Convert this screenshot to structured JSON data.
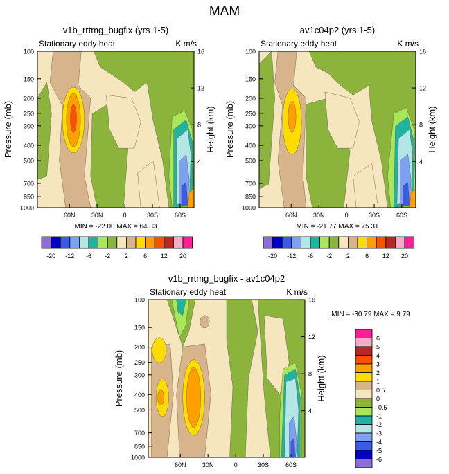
{
  "figure": {
    "title": "MAM"
  },
  "colors": {
    "levels_12": [
      "#8b6fd6",
      "#0000c8",
      "#3c5ae6",
      "#7da0f0",
      "#b4e6e6",
      "#20b4a0",
      "#a8e65a",
      "#8cb43c",
      "#f5e6be",
      "#d7b48c",
      "#ffdc00",
      "#ffa000",
      "#ff5000",
      "#b42828",
      "#f5aac8",
      "#ff1e96"
    ],
    "levels_diff": [
      "#ff1e96",
      "#f5aac8",
      "#b42828",
      "#ff5000",
      "#ffa000",
      "#ffdc00",
      "#d7b48c",
      "#f5e6be",
      "#8cb43c",
      "#a8e65a",
      "#20b4a0",
      "#b4e6e6",
      "#7da0f0",
      "#3c5ae6",
      "#0000c8",
      "#8b6fd6"
    ]
  },
  "chart_data": [
    {
      "type": "heatmap",
      "title": "v1b_rrtmg_bugfix (yrs 1-5)",
      "subtitle_left": "Stationary eddy heat",
      "subtitle_right": "K m/s",
      "ylabel": "Pressure (mb)",
      "ylabel_right": "Height (km)",
      "xticks": [
        "60N",
        "30N",
        "0",
        "30S",
        "60S"
      ],
      "yticks": [
        "100",
        "150",
        "200",
        "250",
        "300",
        "400",
        "500",
        "700",
        "850",
        "1000"
      ],
      "yticks_right": [
        "16",
        "12",
        "8",
        "4"
      ],
      "stats": "MIN = -22.00   MAX =  64.33",
      "min": -22.0,
      "max": 64.33,
      "colorbar_labels": [
        "-20",
        "-12",
        "-6",
        "-2",
        "2",
        "6",
        "12",
        "20"
      ],
      "contour_levels": [
        -20,
        -16,
        -12,
        -8,
        -6,
        -4,
        -2,
        -1,
        1,
        2,
        4,
        6,
        8,
        12,
        16,
        20
      ]
    },
    {
      "type": "heatmap",
      "title": "av1c04p2 (yrs 1-5)",
      "subtitle_left": "Stationary eddy heat",
      "subtitle_right": "K m/s",
      "ylabel": "Pressure (mb)",
      "ylabel_right": "Height (km)",
      "xticks": [
        "60N",
        "30N",
        "0",
        "30S",
        "60S"
      ],
      "yticks": [
        "100",
        "150",
        "200",
        "250",
        "300",
        "400",
        "500",
        "700",
        "850",
        "1000"
      ],
      "yticks_right": [
        "16",
        "12",
        "8",
        "4"
      ],
      "stats": "MIN = -21.77   MAX =  75.31",
      "min": -21.77,
      "max": 75.31,
      "colorbar_labels": [
        "-20",
        "-12",
        "-6",
        "-2",
        "2",
        "6",
        "12",
        "20"
      ],
      "contour_levels": [
        -20,
        -16,
        -12,
        -8,
        -6,
        -4,
        -2,
        -1,
        1,
        2,
        4,
        6,
        8,
        12,
        16,
        20
      ]
    },
    {
      "type": "heatmap",
      "title": "v1b_rrtmg_bugfix - av1c04p2",
      "subtitle_left": "Stationary eddy heat",
      "subtitle_right": "K m/s",
      "ylabel": "Pressure (mb)",
      "ylabel_right": "Height (km)",
      "xticks": [
        "60N",
        "30N",
        "0",
        "30S",
        "60S"
      ],
      "yticks": [
        "100",
        "150",
        "200",
        "250",
        "300",
        "400",
        "500",
        "700",
        "850",
        "1000"
      ],
      "yticks_right": [
        "16",
        "12",
        "8",
        "4"
      ],
      "stats": "MIN = -30.79   MAX =    9.79",
      "min": -30.79,
      "max": 9.79,
      "colorbar_labels": [
        "6",
        "5",
        "4",
        "3",
        "2",
        "1",
        "0.5",
        "0",
        "-0.5",
        "-1",
        "-2",
        "-3",
        "-4",
        "-5",
        "-6"
      ],
      "contour_levels": [
        6,
        5,
        4,
        3,
        2,
        1,
        0.5,
        0,
        -0.5,
        -1,
        -2,
        -3,
        -4,
        -5,
        -6
      ]
    }
  ]
}
